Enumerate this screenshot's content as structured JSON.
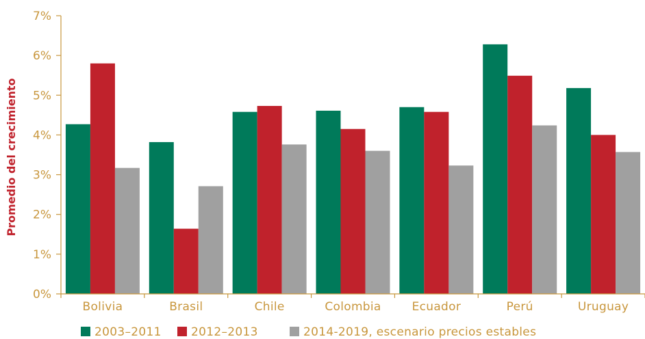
{
  "chart_data": {
    "type": "bar",
    "title": "",
    "xlabel": "",
    "ylabel": "Promedio del crecimiento",
    "ylim": [
      0,
      7
    ],
    "yticks": [
      "0%",
      "1%",
      "2%",
      "3%",
      "4%",
      "5%",
      "6%",
      "7%"
    ],
    "grid": false,
    "legend_position": "bottom",
    "categories": [
      "Bolivia",
      "Brasil",
      "Chile",
      "Colombia",
      "Ecuador",
      "Perú",
      "Uruguay"
    ],
    "series": [
      {
        "name": "2003–2011",
        "color": "#007a5a",
        "values": [
          4.27,
          3.82,
          4.58,
          4.61,
          4.7,
          6.28,
          5.18
        ]
      },
      {
        "name": "2012–2013",
        "color": "#c0222c",
        "values": [
          5.8,
          1.64,
          4.73,
          4.15,
          4.58,
          5.49,
          4.0
        ]
      },
      {
        "name": "2014-2019, escenario precios estables",
        "color": "#a0a0a0",
        "values": [
          3.17,
          2.71,
          3.76,
          3.6,
          3.23,
          4.24,
          3.57
        ]
      }
    ]
  }
}
